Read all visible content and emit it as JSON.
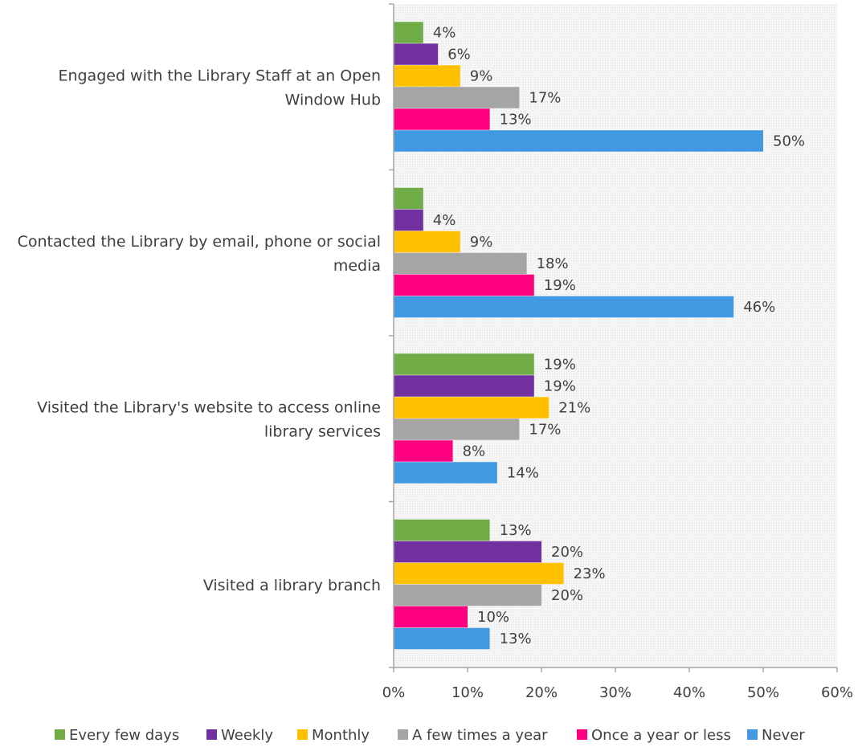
{
  "chart_data": {
    "type": "bar",
    "orientation": "horizontal",
    "title": "",
    "xlabel": "",
    "ylabel": "",
    "xlim": [
      0,
      60
    ],
    "x_ticks": [
      "0%",
      "10%",
      "20%",
      "30%",
      "40%",
      "50%",
      "60%"
    ],
    "grid": false,
    "legend_position": "bottom",
    "categories": [
      [
        "Engaged with the Library Staff at an Open",
        "Window Hub"
      ],
      [
        "Contacted the Library by email, phone or social",
        "media"
      ],
      [
        "Visited the Library's website to access online",
        "library services"
      ],
      [
        "Visited a library branch"
      ]
    ],
    "series": [
      {
        "name": "Every few days",
        "color": "#70AD47",
        "values": [
          4,
          4,
          19,
          13
        ],
        "labels": [
          "4%",
          "",
          "19%",
          "13%"
        ]
      },
      {
        "name": "Weekly",
        "color": "#7030A0",
        "values": [
          6,
          4,
          19,
          20
        ],
        "labels": [
          "6%",
          "4%",
          "19%",
          "20%"
        ]
      },
      {
        "name": "Monthly",
        "color": "#FFC000",
        "values": [
          9,
          9,
          21,
          23
        ],
        "labels": [
          "9%",
          "9%",
          "21%",
          "23%"
        ]
      },
      {
        "name": "A few times a year",
        "color": "#A5A5A5",
        "values": [
          17,
          18,
          17,
          20
        ],
        "labels": [
          "17%",
          "18%",
          "17%",
          "20%"
        ]
      },
      {
        "name": "Once a year or less",
        "color": "#FF0080",
        "values": [
          13,
          19,
          8,
          10
        ],
        "labels": [
          "13%",
          "19%",
          "8%",
          "10%"
        ]
      },
      {
        "name": "Never",
        "color": "#4199E1",
        "values": [
          50,
          46,
          14,
          13
        ],
        "labels": [
          "50%",
          "46%",
          "14%",
          "13%"
        ]
      }
    ]
  }
}
